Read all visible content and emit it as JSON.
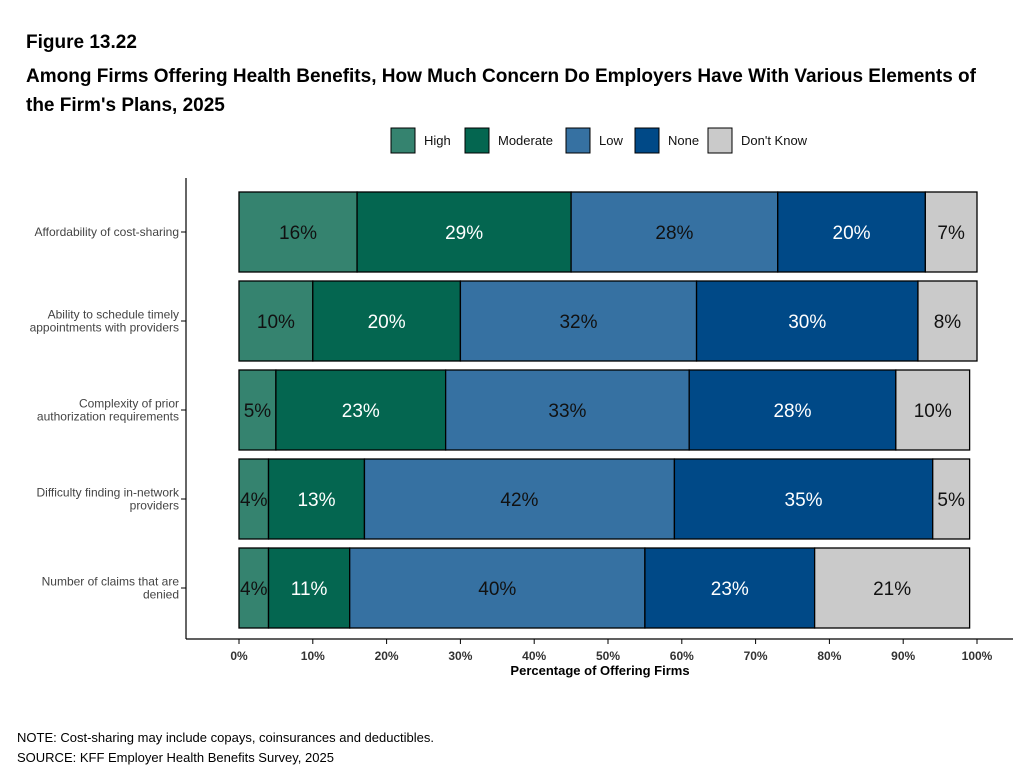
{
  "figure_number": "Figure 13.22",
  "title": "Among Firms Offering Health Benefits, How Much Concern Do Employers Have With Various Elements of the Firm's Plans, 2025",
  "note": "NOTE: Cost-sharing may include copays, coinsurances and deductibles.",
  "source": "SOURCE: KFF Employer Health Benefits Survey, 2025",
  "chart_data": {
    "type": "bar",
    "orientation": "horizontal",
    "stacked": true,
    "xlabel": "Percentage of Offering Firms",
    "ylabel": "",
    "xlim": [
      0,
      100
    ],
    "x_ticks": [
      "0%",
      "10%",
      "20%",
      "30%",
      "40%",
      "50%",
      "60%",
      "70%",
      "80%",
      "90%",
      "100%"
    ],
    "legend_position": "top",
    "grid": false,
    "categories": [
      "Affordability of cost-sharing",
      "Ability to schedule timely appointments with providers",
      "Complexity of prior authorization requirements",
      "Difficulty finding in-network providers",
      "Number of claims that are denied"
    ],
    "category_label_lines": [
      [
        "Affordability of cost-sharing"
      ],
      [
        "Ability to schedule timely",
        "appointments with providers"
      ],
      [
        "Complexity of prior",
        "authorization requirements"
      ],
      [
        "Difficulty finding in-network",
        "providers"
      ],
      [
        "Number of claims that are",
        "denied"
      ]
    ],
    "series": [
      {
        "name": "High",
        "color": "#35836f",
        "label_color": "#111111",
        "values": [
          16,
          10,
          5,
          4,
          4
        ]
      },
      {
        "name": "Moderate",
        "color": "#046650",
        "label_color": "#ffffff",
        "values": [
          29,
          20,
          23,
          13,
          11
        ]
      },
      {
        "name": "Low",
        "color": "#3671a2",
        "label_color": "#111111",
        "values": [
          28,
          32,
          33,
          42,
          40
        ]
      },
      {
        "name": "None",
        "color": "#004987",
        "label_color": "#ffffff",
        "values": [
          20,
          30,
          28,
          35,
          23
        ]
      },
      {
        "name": "Don't Know",
        "color": "#cacaca",
        "label_color": "#111111",
        "values": [
          7,
          8,
          10,
          5,
          21
        ]
      }
    ]
  }
}
